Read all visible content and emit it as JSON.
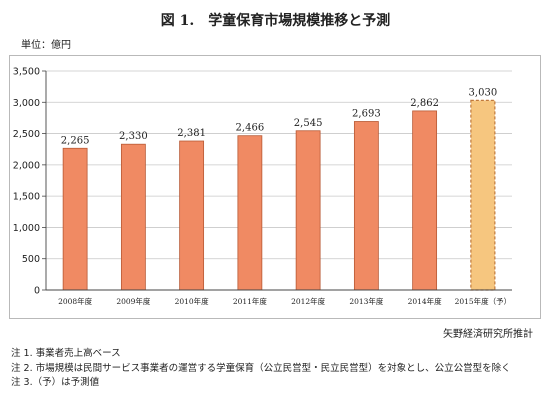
{
  "page": {
    "title": "図 1.　学童保育市場規模推移と予測",
    "unit": "単位：億円",
    "source": "矢野経済研究所推計",
    "notes": [
      "注 1.  事業者売上高ベース",
      "注 2.  市場規模は民間サービス事業者の運営する学童保育（公立民営型・民立民営型）を対象とし、公立公営型を除く",
      "注 3.（予）は予測値"
    ]
  },
  "colors": {
    "bar_fill": "#f08a63",
    "bar_stroke": "#b85a35",
    "forecast_fill": "#f6c67f",
    "forecast_stroke": "#c17a3c",
    "grid": "#c8c8c8"
  },
  "chart_data": {
    "type": "bar",
    "title": "図 1.　学童保育市場規模推移と予測",
    "ylabel": "単位：億円",
    "categories": [
      "2008年度",
      "2009年度",
      "2010年度",
      "2011年度",
      "2012年度",
      "2013年度",
      "2014年度",
      "2015年度（予）"
    ],
    "values": [
      2265,
      2330,
      2381,
      2466,
      2545,
      2693,
      2862,
      3030
    ],
    "data_labels": [
      "2,265",
      "2,330",
      "2,381",
      "2,466",
      "2,545",
      "2,693",
      "2,862",
      "3,030"
    ],
    "forecast": [
      false,
      false,
      false,
      false,
      false,
      false,
      false,
      true
    ],
    "ylim": [
      0,
      3500
    ],
    "yticks": [
      0,
      500,
      1000,
      1500,
      2000,
      2500,
      3000,
      3500
    ],
    "ytick_labels": [
      "0",
      "500",
      "1,000",
      "1,500",
      "2,000",
      "2,500",
      "3,000",
      "3,500"
    ],
    "grid": true,
    "legend": false
  }
}
